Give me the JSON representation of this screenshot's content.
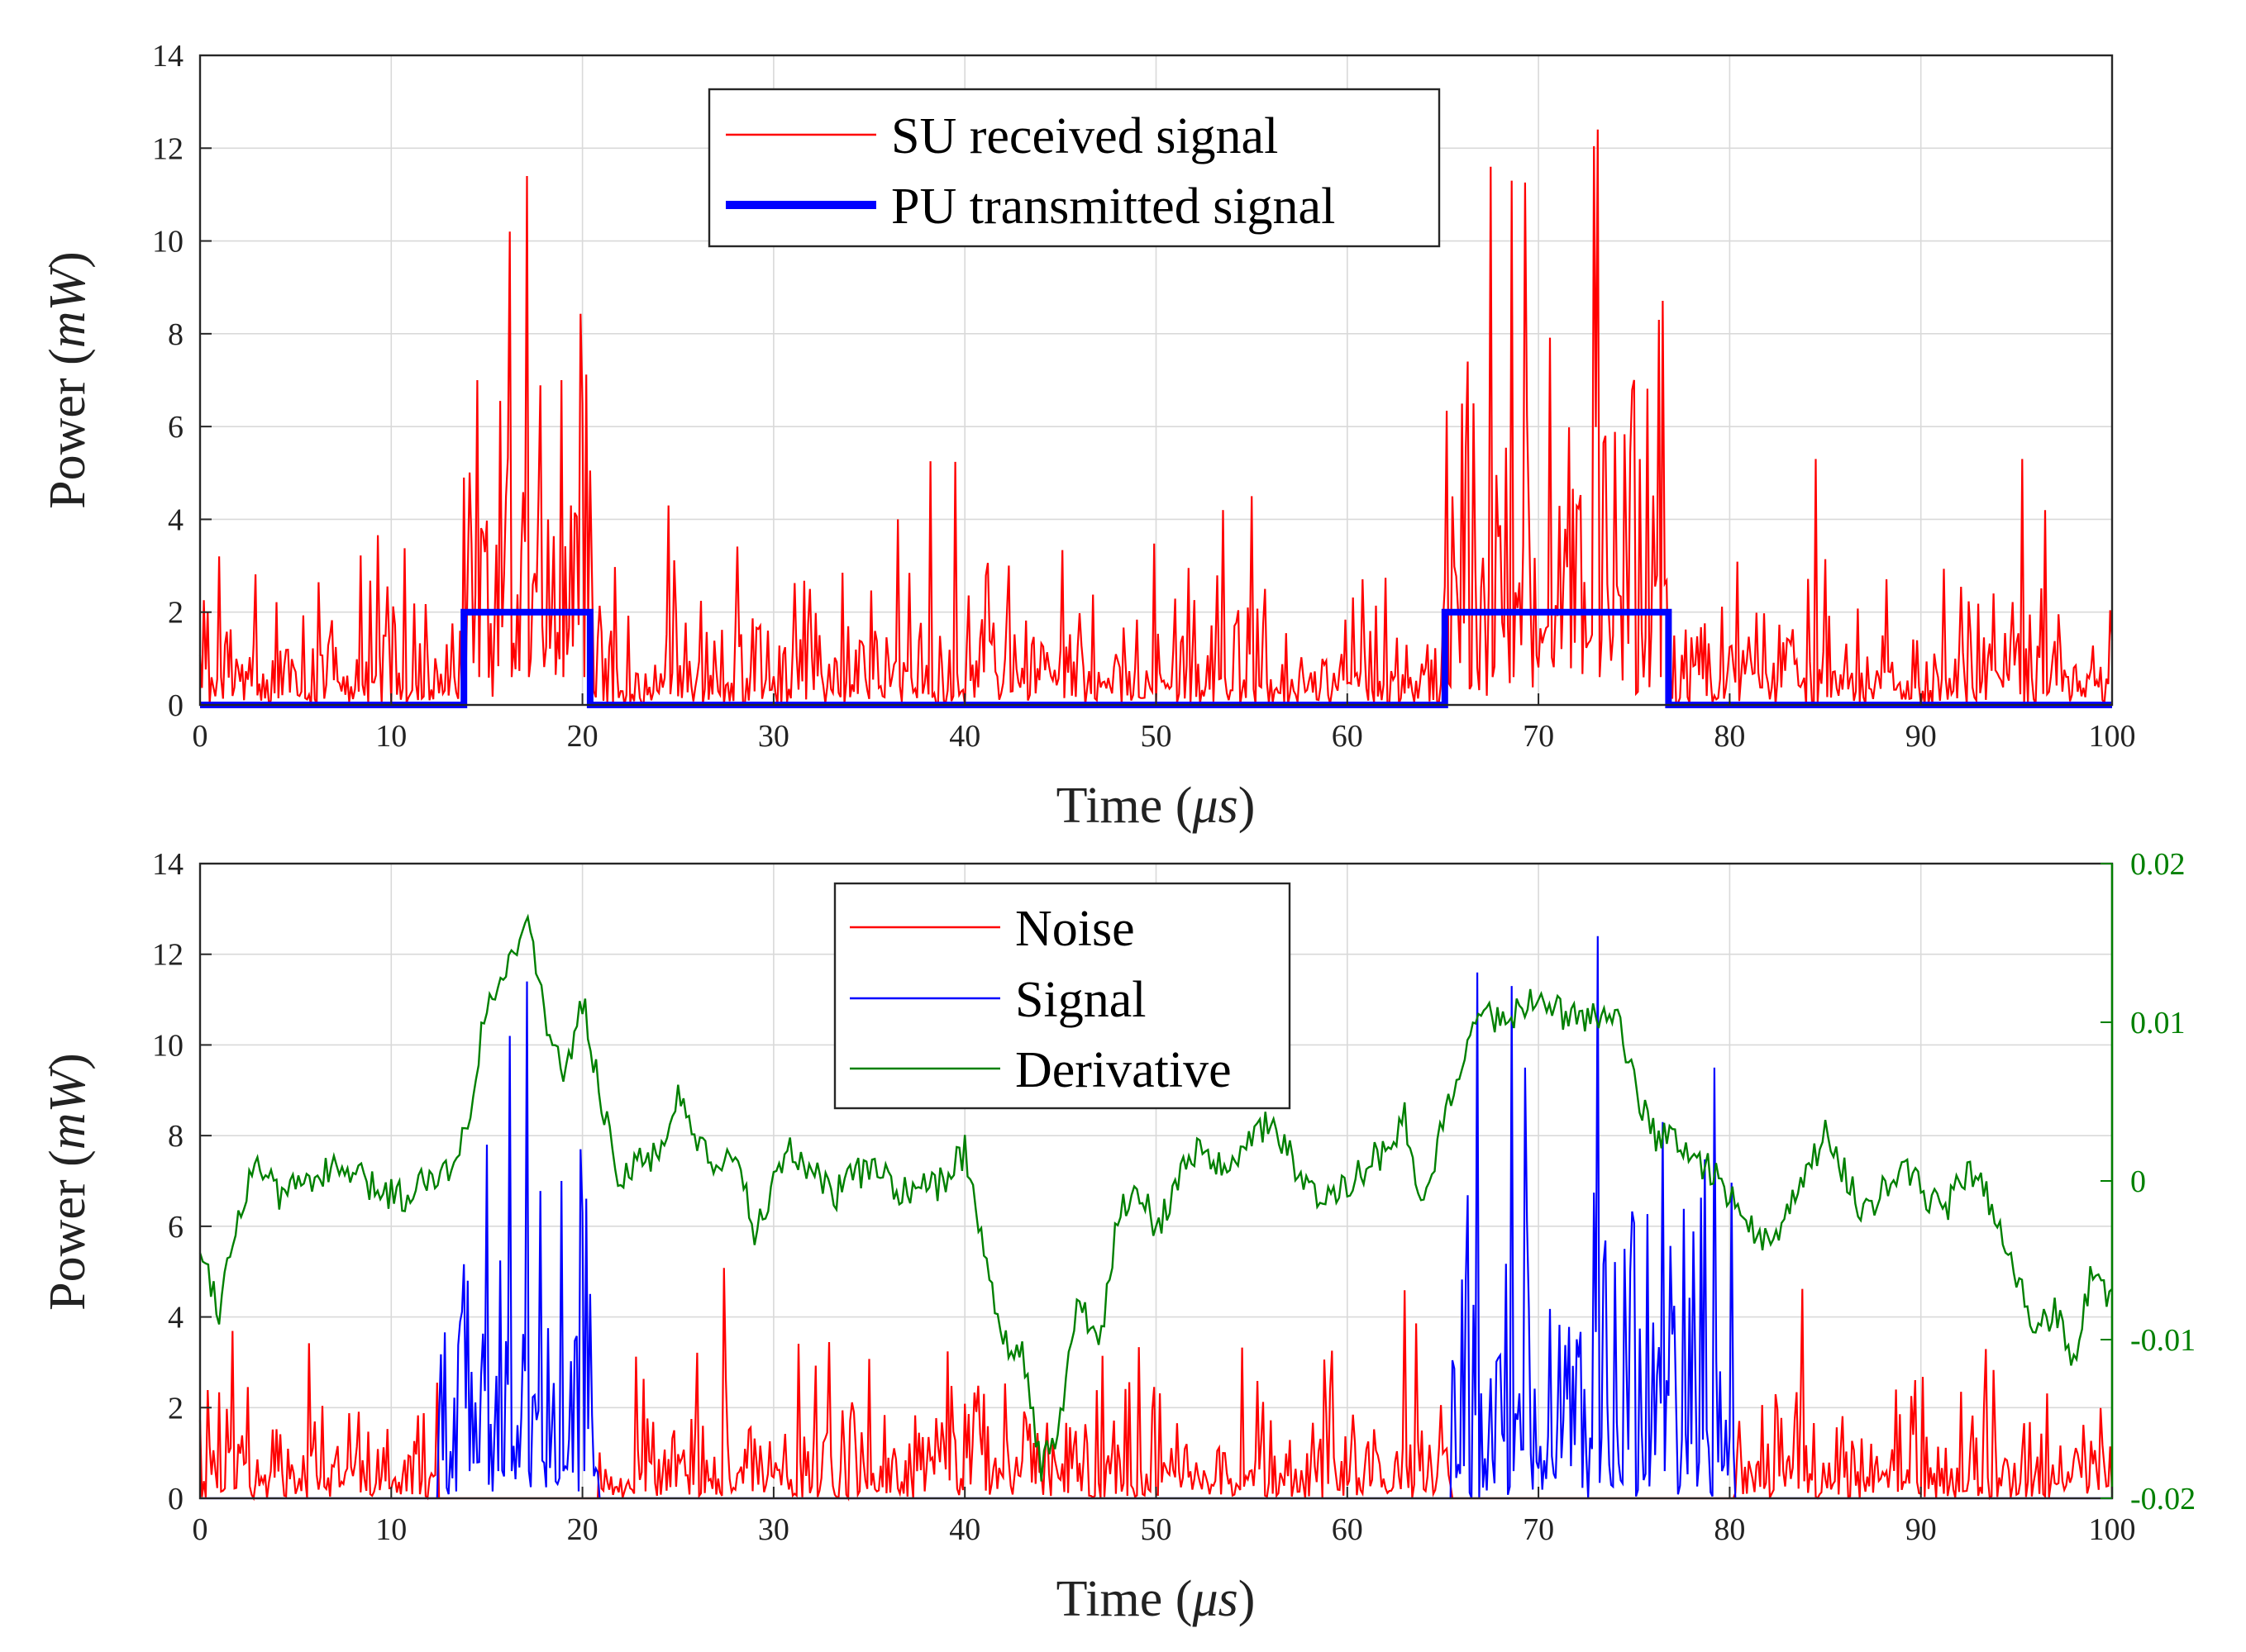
{
  "chart_data": [
    {
      "type": "line",
      "id": "top",
      "title": "",
      "xlabel": "Time ",
      "xlabel_unit": "μs",
      "ylabel": "Power ",
      "ylabel_unit": "mW",
      "xlim": [
        0,
        100
      ],
      "ylim": [
        0,
        14
      ],
      "xticks": [
        0,
        10,
        20,
        30,
        40,
        50,
        60,
        70,
        80,
        90,
        100
      ],
      "yticks": [
        0,
        2,
        4,
        6,
        8,
        10,
        12,
        14
      ],
      "grid": true,
      "legend_position": "top-center",
      "series": [
        {
          "name": "SU received signal",
          "color": "#ff0000",
          "style": "noisy",
          "noise_mean": 0.8,
          "active_intervals": [
            [
              14,
              20.5
            ],
            [
              65,
              76.7
            ]
          ],
          "active_mean": 3.0,
          "notable_peaks": [
            [
              1.0,
              3.2
            ],
            [
              13.8,
              4.9
            ],
            [
              14.5,
              7.0
            ],
            [
              16.2,
              10.2
            ],
            [
              17.1,
              11.4
            ],
            [
              18.9,
              7.0
            ],
            [
              20.0,
              6.5
            ],
            [
              24.5,
              4.3
            ],
            [
              36.5,
              4.0
            ],
            [
              53.5,
              4.2
            ],
            [
              55.0,
              4.5
            ],
            [
              66.3,
              7.4
            ],
            [
              67.5,
              11.6
            ],
            [
              68.6,
              11.3
            ],
            [
              73.1,
              12.4
            ],
            [
              76.3,
              8.3
            ],
            [
              95.3,
              5.3
            ],
            [
              96.5,
              4.2
            ]
          ]
        },
        {
          "name": "PU transmitted signal",
          "color": "#0000ff",
          "style": "step",
          "x": [
            0,
            13.8,
            13.8,
            20.4,
            20.4,
            65.1,
            65.1,
            76.8,
            76.8,
            100
          ],
          "values": [
            0,
            0,
            2,
            2,
            0,
            0,
            2,
            2,
            0,
            0
          ]
        }
      ]
    },
    {
      "type": "line",
      "id": "bottom",
      "title": "",
      "xlabel": "Time ",
      "xlabel_unit": "μs",
      "ylabel": "Power ",
      "ylabel_unit": "mW",
      "xlim": [
        0,
        100
      ],
      "ylim": [
        0,
        14
      ],
      "y2lim": [
        -0.02,
        0.02
      ],
      "xticks": [
        0,
        10,
        20,
        30,
        40,
        50,
        60,
        70,
        80,
        90,
        100
      ],
      "yticks": [
        0,
        2,
        4,
        6,
        8,
        10,
        12,
        14
      ],
      "y2ticks": [
        "-0.02",
        "-0.01",
        "0",
        "0.01",
        "0.02"
      ],
      "y2color": "#008000",
      "grid": true,
      "legend_position": "top-center",
      "series": [
        {
          "name": "Noise",
          "color": "#ff0000",
          "style": "noisy",
          "noise_mean": 0.8,
          "zero_intervals": [
            [
              12.5,
              20.8
            ],
            [
              65.5,
              80.3
            ]
          ]
        },
        {
          "name": "Signal",
          "color": "#0000ff",
          "style": "noisy-burst",
          "active_intervals": [
            [
              12.5,
              20.8
            ],
            [
              65.5,
              80.3
            ]
          ],
          "active_mean": 2.2,
          "notable_peaks": [
            [
              14.0,
              4.8
            ],
            [
              15.0,
              7.8
            ],
            [
              16.2,
              10.2
            ],
            [
              17.1,
              11.4
            ],
            [
              18.9,
              7.0
            ],
            [
              20.0,
              6.3
            ],
            [
              66.8,
              11.6
            ],
            [
              68.6,
              11.3
            ],
            [
              73.1,
              12.4
            ],
            [
              76.5,
              8.3
            ],
            [
              79.5,
              2.8
            ]
          ]
        },
        {
          "name": "Derivative",
          "color": "#008000",
          "axis": "right",
          "style": "line",
          "x": [
            0,
            1,
            2,
            3,
            4,
            6,
            8,
            9,
            11,
            12,
            13,
            14,
            15,
            16,
            17,
            18,
            19,
            20,
            21,
            22,
            24,
            25,
            27,
            28,
            29,
            31,
            33,
            35,
            37,
            39,
            40,
            41,
            42,
            43,
            44,
            45,
            46,
            47,
            48,
            49,
            50,
            52,
            54,
            56,
            58,
            60,
            62,
            63,
            64,
            65,
            66,
            67,
            68,
            70,
            72,
            74,
            75,
            76,
            78,
            80,
            82,
            84,
            85,
            87,
            89,
            91,
            93,
            94,
            95,
            96,
            97,
            98,
            99,
            100
          ],
          "values": [
            -0.004,
            -0.008,
            -0.002,
            0.0015,
            -0.001,
            0.0005,
            0.0005,
            -0.0005,
            -0.001,
            0.0007,
            0.0004,
            0.004,
            0.011,
            0.013,
            0.017,
            0.011,
            0.006,
            0.0115,
            0.005,
            0.0,
            0.002,
            0.005,
            0.0,
            0.002,
            -0.003,
            0.002,
            -0.001,
            0.001,
            -0.001,
            0.0,
            0.002,
            -0.004,
            -0.01,
            -0.011,
            -0.018,
            -0.015,
            -0.007,
            -0.011,
            -0.002,
            0.0,
            -0.003,
            0.002,
            0.001,
            0.004,
            -0.001,
            0.0,
            0.002,
            0.004,
            -0.002,
            0.004,
            0.008,
            0.011,
            0.01,
            0.0115,
            0.01,
            0.011,
            0.006,
            0.003,
            0.002,
            -0.001,
            -0.004,
            0.0,
            0.003,
            -0.002,
            0.001,
            -0.002,
            0.001,
            -0.003,
            -0.006,
            -0.01,
            -0.008,
            -0.011,
            -0.0055,
            -0.0075
          ]
        }
      ]
    }
  ]
}
